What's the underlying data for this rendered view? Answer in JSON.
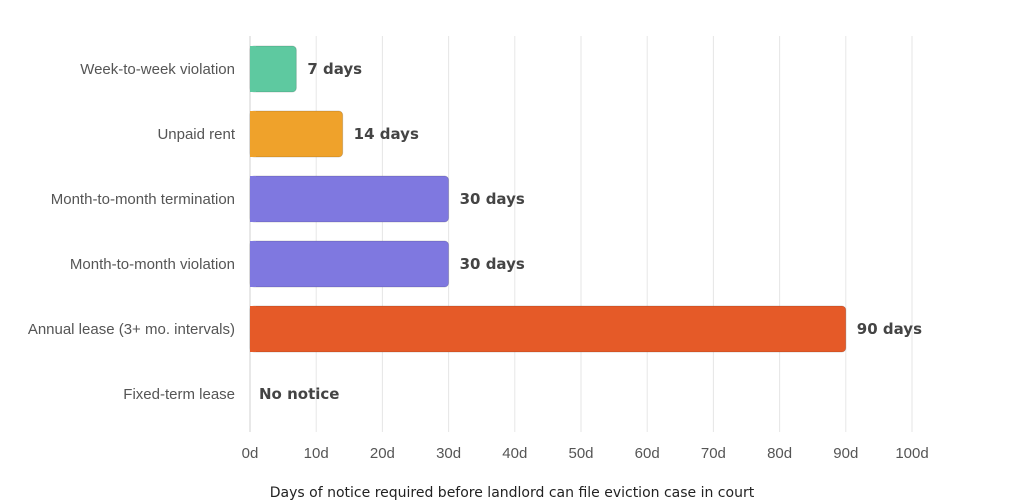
{
  "chart_data": {
    "type": "bar",
    "orientation": "horizontal",
    "categories": [
      "Week-to-week violation",
      "Unpaid rent",
      "Month-to-month termination",
      "Month-to-month violation",
      "Annual lease (3+ mo. intervals)",
      "Fixed-term lease"
    ],
    "values": [
      7,
      14,
      30,
      30,
      90,
      0
    ],
    "data_labels": [
      "7 days",
      "14 days",
      "30 days",
      "30 days",
      "90 days",
      "No notice"
    ],
    "colors": [
      "#5ec9a0",
      "#efa22b",
      "#7f78e0",
      "#7f78e0",
      "#e55a28",
      "#ffffff"
    ],
    "xlim": [
      0,
      100
    ],
    "x_ticks": [
      0,
      10,
      20,
      30,
      40,
      50,
      60,
      70,
      80,
      90,
      100
    ],
    "x_tick_labels": [
      "0d",
      "10d",
      "20d",
      "30d",
      "40d",
      "50d",
      "60d",
      "70d",
      "80d",
      "90d",
      "100d"
    ],
    "xlabel": "Days of notice required before landlord can file eviction case in court",
    "grid": "vertical",
    "legend": "none"
  }
}
